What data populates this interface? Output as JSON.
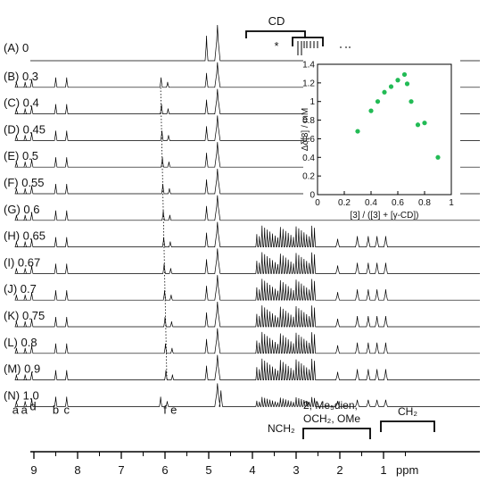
{
  "chart_data": [
    {
      "type": "line",
      "title": "",
      "xlabel": "ppm",
      "x_axis": {
        "reversed": true,
        "xlim": [
          10,
          0.2
        ],
        "ticks": [
          "9",
          "8",
          "7",
          "6",
          "5",
          "4",
          "3",
          "2",
          "1"
        ],
        "unit_label": "ppm"
      },
      "series": [
        {
          "name": "(A) 0"
        },
        {
          "name": "(B) 0.3"
        },
        {
          "name": "(C) 0.4"
        },
        {
          "name": "(D) 0.45"
        },
        {
          "name": "(E) 0.5"
        },
        {
          "name": "(F) 0.55"
        },
        {
          "name": "(G) 0.6"
        },
        {
          "name": "(H) 0.65"
        },
        {
          "name": "(I) 0.67"
        },
        {
          "name": "(J) 0.7"
        },
        {
          "name": "(K) 0.75"
        },
        {
          "name": "(L) 0.8"
        },
        {
          "name": "(M) 0.9"
        },
        {
          "name": "(N) 1.0"
        }
      ],
      "peak_labels": [
        "a",
        "a",
        "d",
        "b",
        "c",
        "f",
        "e"
      ],
      "annotations": {
        "cd": "CD",
        "star": "*",
        "nch2": "NCH₂",
        "group_line1": "2, Me₅dien,",
        "group_line2": "OCH₂, OMe",
        "ch2": "CH₂"
      }
    },
    {
      "type": "scatter",
      "xlabel": "[3] / ([3] + [γ-CD])",
      "ylabel": "Δδ[3] / mM",
      "xlim": [
        0,
        1
      ],
      "ylim": [
        0,
        1.4
      ],
      "x_ticks": [
        "0",
        "0.2",
        "0.4",
        "0.6",
        "0.8",
        "1"
      ],
      "y_ticks": [
        "0",
        "0.2",
        "0.4",
        "0.6",
        "0.8",
        "1",
        "1.2",
        "1.4"
      ],
      "color": "#22bb55",
      "points": [
        {
          "x": 0.3,
          "y": 0.68
        },
        {
          "x": 0.4,
          "y": 0.9
        },
        {
          "x": 0.45,
          "y": 1.0
        },
        {
          "x": 0.5,
          "y": 1.1
        },
        {
          "x": 0.55,
          "y": 1.16
        },
        {
          "x": 0.6,
          "y": 1.23
        },
        {
          "x": 0.65,
          "y": 1.29
        },
        {
          "x": 0.67,
          "y": 1.19
        },
        {
          "x": 0.7,
          "y": 1.0
        },
        {
          "x": 0.75,
          "y": 0.75
        },
        {
          "x": 0.8,
          "y": 0.77
        },
        {
          "x": 0.9,
          "y": 0.4
        }
      ]
    }
  ]
}
